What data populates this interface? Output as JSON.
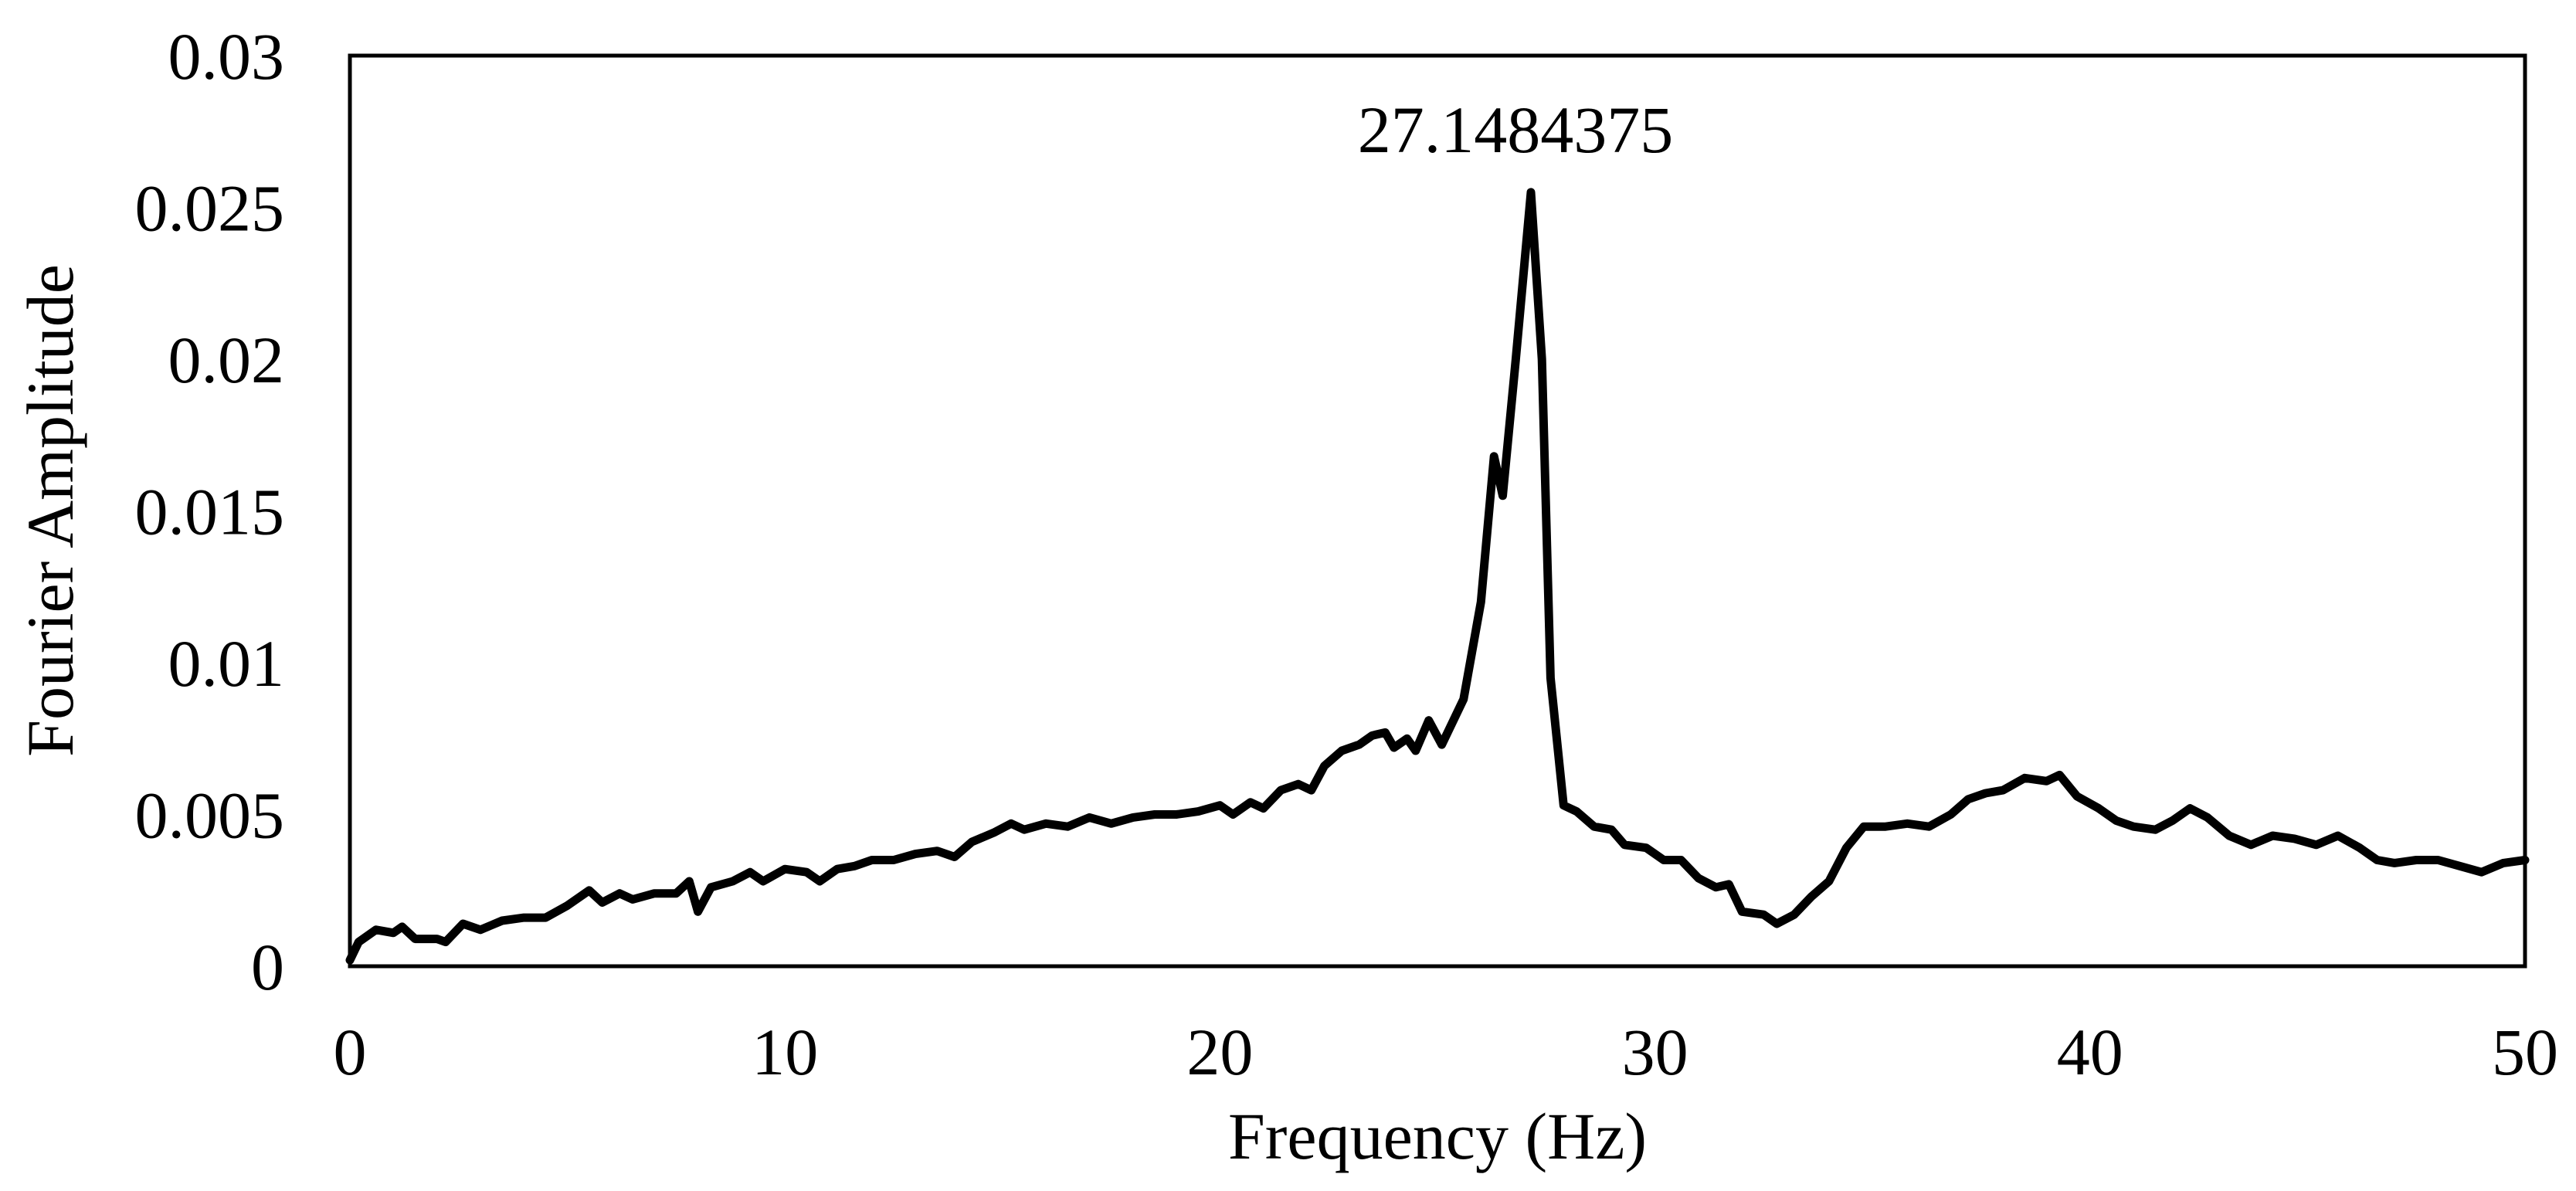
{
  "chart_data": {
    "type": "line",
    "xlabel": "Frequency (Hz)",
    "ylabel": "Fourier Amplitude",
    "annotation": "27.1484375",
    "xlim": [
      0,
      50
    ],
    "xticks": [
      0,
      10,
      20,
      30,
      40,
      50
    ],
    "ylim": [
      0,
      0.03
    ],
    "yticks": [
      0,
      0.005,
      0.01,
      0.015,
      0.02,
      0.025,
      0.03
    ],
    "grid": false,
    "series": [
      {
        "color": "#000000",
        "x": [
          0,
          0.2,
          0.6,
          1.0,
          1.2,
          1.5,
          2.0,
          2.2,
          2.6,
          3.0,
          3.5,
          4.0,
          4.5,
          5.0,
          5.5,
          5.8,
          6.2,
          6.5,
          7.0,
          7.5,
          7.8,
          8.0,
          8.3,
          8.8,
          9.2,
          9.5,
          10.0,
          10.5,
          10.8,
          11.2,
          11.6,
          12.0,
          12.5,
          13.0,
          13.5,
          13.9,
          14.3,
          14.8,
          15.2,
          15.5,
          16.0,
          16.5,
          17.0,
          17.5,
          18.0,
          18.5,
          19.0,
          19.5,
          20.0,
          20.3,
          20.7,
          21.0,
          21.4,
          21.8,
          22.1,
          22.4,
          22.8,
          23.2,
          23.5,
          23.8,
          24.0,
          24.3,
          24.5,
          24.8,
          25.1,
          25.6,
          26.0,
          26.3,
          26.5,
          26.8,
          27.1484375,
          27.4,
          27.6,
          27.9,
          28.2,
          28.6,
          29.0,
          29.3,
          29.8,
          30.2,
          30.6,
          31.0,
          31.4,
          31.7,
          32.0,
          32.5,
          32.8,
          33.2,
          33.6,
          34.0,
          34.4,
          34.8,
          35.3,
          35.8,
          36.3,
          36.8,
          37.2,
          37.6,
          38.0,
          38.5,
          39.0,
          39.3,
          39.7,
          40.2,
          40.6,
          41.0,
          41.5,
          41.9,
          42.3,
          42.7,
          43.2,
          43.7,
          44.2,
          44.7,
          45.2,
          45.7,
          46.2,
          46.6,
          47.0,
          47.5,
          48.0,
          48.5,
          49.0,
          49.5,
          50.0
        ],
        "values": [
          0.0002,
          0.0008,
          0.0012,
          0.0011,
          0.0013,
          0.0009,
          0.0009,
          0.0008,
          0.0014,
          0.0012,
          0.0015,
          0.0016,
          0.0016,
          0.002,
          0.0025,
          0.0021,
          0.0024,
          0.0022,
          0.0024,
          0.0024,
          0.0028,
          0.0018,
          0.0026,
          0.0028,
          0.0031,
          0.0028,
          0.0032,
          0.0031,
          0.0028,
          0.0032,
          0.0033,
          0.0035,
          0.0035,
          0.0037,
          0.0038,
          0.0036,
          0.0041,
          0.0044,
          0.0047,
          0.0045,
          0.0047,
          0.0046,
          0.0049,
          0.0047,
          0.0049,
          0.005,
          0.005,
          0.0051,
          0.0053,
          0.005,
          0.0054,
          0.0052,
          0.0058,
          0.006,
          0.0058,
          0.0066,
          0.0071,
          0.0073,
          0.0076,
          0.0077,
          0.0072,
          0.0075,
          0.0071,
          0.0081,
          0.0073,
          0.0088,
          0.012,
          0.0168,
          0.0155,
          0.02,
          0.0255,
          0.02,
          0.0095,
          0.0053,
          0.0051,
          0.0046,
          0.0045,
          0.004,
          0.0039,
          0.0035,
          0.0035,
          0.0029,
          0.0026,
          0.0027,
          0.0018,
          0.0017,
          0.0014,
          0.0017,
          0.0023,
          0.0028,
          0.0039,
          0.0046,
          0.0046,
          0.0047,
          0.0046,
          0.005,
          0.0055,
          0.0057,
          0.0058,
          0.0062,
          0.0061,
          0.0063,
          0.0056,
          0.0052,
          0.0048,
          0.0046,
          0.0045,
          0.0048,
          0.0052,
          0.0049,
          0.0043,
          0.004,
          0.0043,
          0.0042,
          0.004,
          0.0043,
          0.0039,
          0.0035,
          0.0034,
          0.0035,
          0.0035,
          0.0033,
          0.0031,
          0.0034,
          0.0035
        ]
      }
    ]
  }
}
